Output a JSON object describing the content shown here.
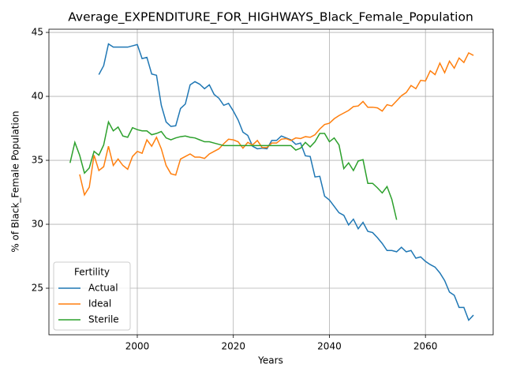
{
  "chart_data": {
    "type": "line",
    "title": "Average_EXPENDITURE_FOR_HIGHWAYS_Black_Female_Population",
    "xlabel": "Years",
    "ylabel": "% of Black_Female Population",
    "x": [
      1986,
      1987,
      1988,
      1989,
      1990,
      1991,
      1992,
      1993,
      1994,
      1995,
      1996,
      1997,
      1998,
      1999,
      2000,
      2001,
      2002,
      2003,
      2004,
      2005,
      2006,
      2007,
      2008,
      2009,
      2010,
      2011,
      2012,
      2013,
      2014,
      2015,
      2016,
      2017,
      2018,
      2019,
      2020,
      2021,
      2022,
      2023,
      2024,
      2025,
      2026,
      2027,
      2028,
      2029,
      2030,
      2031,
      2032,
      2033,
      2034,
      2035,
      2036,
      2037,
      2038,
      2039,
      2040,
      2041,
      2042,
      2043,
      2044,
      2045,
      2046,
      2047,
      2048,
      2049,
      2050,
      2051,
      2052,
      2053,
      2054,
      2055,
      2056,
      2057,
      2058,
      2059,
      2060,
      2061,
      2062,
      2063,
      2064,
      2065,
      2066,
      2067,
      2068,
      2069,
      2070
    ],
    "series": [
      {
        "name": "Actual",
        "color": "#1f77b4",
        "values": [
          null,
          null,
          null,
          null,
          null,
          null,
          41.7,
          42.4,
          44.1,
          43.85,
          43.85,
          43.85,
          43.85,
          43.95,
          44.05,
          42.95,
          43.05,
          41.75,
          41.65,
          39.3,
          38.0,
          37.65,
          37.7,
          39.05,
          39.4,
          40.9,
          41.15,
          40.95,
          40.6,
          40.9,
          40.15,
          39.85,
          39.3,
          39.45,
          38.85,
          38.15,
          37.2,
          36.95,
          36.1,
          35.9,
          35.95,
          35.9,
          36.55,
          36.55,
          36.9,
          36.75,
          36.6,
          36.25,
          36.35,
          35.35,
          35.3,
          33.7,
          33.75,
          32.2,
          31.9,
          31.4,
          30.9,
          30.7,
          29.95,
          30.4,
          29.65,
          30.15,
          29.45,
          29.35,
          28.95,
          28.5,
          27.95,
          27.95,
          27.85,
          28.2,
          27.85,
          27.95,
          27.35,
          27.45,
          27.1,
          26.85,
          26.65,
          26.2,
          25.6,
          24.7,
          24.45,
          23.5,
          23.5,
          22.5,
          22.9
        ]
      },
      {
        "name": "Ideal",
        "color": "#ff7f0e",
        "values": [
          null,
          null,
          33.9,
          32.3,
          32.9,
          35.4,
          34.2,
          34.5,
          36.1,
          34.6,
          35.1,
          34.6,
          34.3,
          35.3,
          35.7,
          35.55,
          36.6,
          36.1,
          36.8,
          35.9,
          34.6,
          33.95,
          33.85,
          35.1,
          35.3,
          35.5,
          35.25,
          35.25,
          35.15,
          35.5,
          35.7,
          35.9,
          36.3,
          36.65,
          36.6,
          36.45,
          35.95,
          36.4,
          36.2,
          36.55,
          36.0,
          36.0,
          36.35,
          36.35,
          36.65,
          36.7,
          36.55,
          36.75,
          36.7,
          36.85,
          36.8,
          37.0,
          37.45,
          37.8,
          37.9,
          38.25,
          38.5,
          38.7,
          38.9,
          39.2,
          39.25,
          39.6,
          39.15,
          39.15,
          39.1,
          38.85,
          39.35,
          39.25,
          39.65,
          40.05,
          40.3,
          40.85,
          40.6,
          41.25,
          41.2,
          42.0,
          41.7,
          42.6,
          41.85,
          42.75,
          42.2,
          43.0,
          42.65,
          43.4,
          43.2
        ]
      },
      {
        "name": "Sterile",
        "color": "#2ca02c",
        "values": [
          34.8,
          36.4,
          35.4,
          34.0,
          34.4,
          35.7,
          35.4,
          36.2,
          38.0,
          37.3,
          37.6,
          36.9,
          36.8,
          37.55,
          37.4,
          37.3,
          37.3,
          37.0,
          37.1,
          37.25,
          36.75,
          36.6,
          36.75,
          36.85,
          36.9,
          36.8,
          36.75,
          36.6,
          36.45,
          36.45,
          36.35,
          36.25,
          36.15,
          36.15,
          36.15,
          36.15,
          36.15,
          36.15,
          36.15,
          36.15,
          36.15,
          36.15,
          36.15,
          36.15,
          36.15,
          36.15,
          36.15,
          35.8,
          35.95,
          36.4,
          36.05,
          36.45,
          37.1,
          37.1,
          36.45,
          36.75,
          36.2,
          34.35,
          34.8,
          34.2,
          34.95,
          35.05,
          33.2,
          33.2,
          32.85,
          32.45,
          32.95,
          31.95,
          30.35,
          null,
          null,
          null,
          null,
          null,
          null,
          null,
          null,
          null,
          null,
          null,
          null,
          null,
          null,
          null,
          null
        ]
      }
    ],
    "xlim": [
      1981.6,
      2074.1
    ],
    "ylim": [
      21.36,
      45.25
    ],
    "xticks": [
      2000,
      2020,
      2040,
      2060
    ],
    "yticks": [
      25,
      30,
      35,
      40,
      45
    ],
    "grid": true,
    "legend_title": "Fertility",
    "legend_loc": "lower left"
  }
}
